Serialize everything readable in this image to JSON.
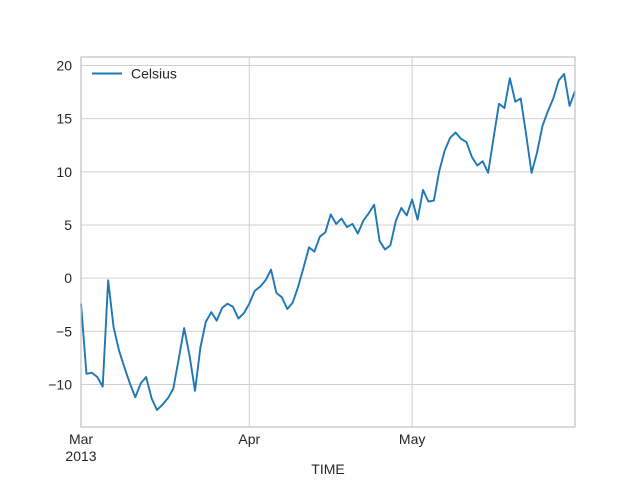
{
  "figure": {
    "background": "#ffffff"
  },
  "chart_data": {
    "type": "line",
    "title": "",
    "xlabel": "TIME",
    "ylabel": "",
    "legend": {
      "entries": [
        "Celsius"
      ],
      "position": "upper-left",
      "frame": false
    },
    "series": [
      {
        "name": "Celsius",
        "color": "#1f77b4",
        "x_start": "2013-03-01",
        "x_step_days": 1,
        "values": [
          -2.4,
          -9.0,
          -8.9,
          -9.3,
          -10.2,
          -0.2,
          -4.6,
          -6.8,
          -8.4,
          -9.9,
          -11.2,
          -9.9,
          -9.3,
          -11.3,
          -12.4,
          -11.9,
          -11.3,
          -10.4,
          -7.6,
          -4.7,
          -7.3,
          -10.6,
          -6.5,
          -4.1,
          -3.2,
          -4.0,
          -2.8,
          -2.4,
          -2.7,
          -3.8,
          -3.3,
          -2.4,
          -1.2,
          -0.8,
          -0.2,
          0.8,
          -1.4,
          -1.8,
          -2.9,
          -2.3,
          -0.8,
          1.0,
          2.9,
          2.5,
          3.9,
          4.3,
          6.0,
          5.1,
          5.6,
          4.8,
          5.1,
          4.2,
          5.4,
          6.1,
          6.9,
          3.5,
          2.7,
          3.1,
          5.4,
          6.6,
          5.9,
          7.4,
          5.5,
          8.3,
          7.2,
          7.3,
          10.1,
          12.0,
          13.2,
          13.7,
          13.1,
          12.8,
          11.4,
          10.6,
          11.0,
          9.9,
          13.2,
          16.4,
          16.0,
          18.8,
          16.6,
          16.9,
          13.5,
          9.9,
          11.8,
          14.3,
          15.7,
          16.9,
          18.6,
          19.2,
          16.2,
          17.6
        ]
      }
    ],
    "x_ticks": [
      {
        "day": 0,
        "label": "Mar",
        "sublabel": "2013"
      },
      {
        "day": 31,
        "label": "Apr",
        "sublabel": ""
      },
      {
        "day": 61,
        "label": "May",
        "sublabel": ""
      }
    ],
    "y_ticks": [
      20,
      15,
      10,
      5,
      0,
      -5,
      -10
    ],
    "xlim_days": [
      0,
      91
    ],
    "ylim": [
      -14.0,
      20.8
    ],
    "grid": true,
    "colors": {
      "grid": "#d0d0d0",
      "spine": "#c0c0c0",
      "tick_text": "#262626",
      "line": "#1f77b4"
    }
  }
}
